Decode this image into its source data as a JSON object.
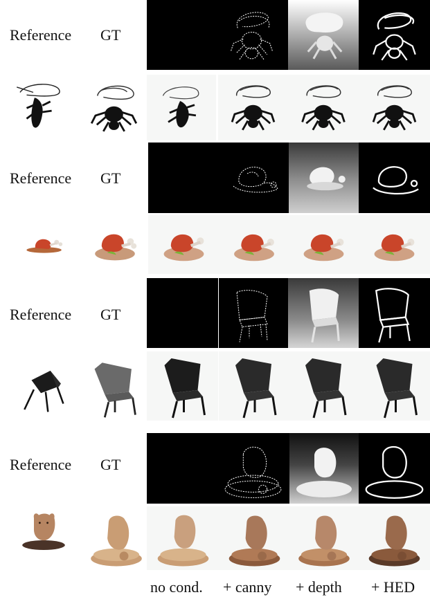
{
  "rows": [
    {
      "ref_label": "Reference",
      "gt_label": "GT",
      "object": "spider"
    },
    {
      "ref_label": "Reference",
      "gt_label": "GT",
      "object": "roast-meat"
    },
    {
      "ref_label": "Reference",
      "gt_label": "GT",
      "object": "chair"
    },
    {
      "ref_label": "Reference",
      "gt_label": "GT",
      "object": "bear-statue"
    }
  ],
  "columns": [
    "no cond.",
    "+ canny",
    "+ depth",
    "+ HED"
  ]
}
